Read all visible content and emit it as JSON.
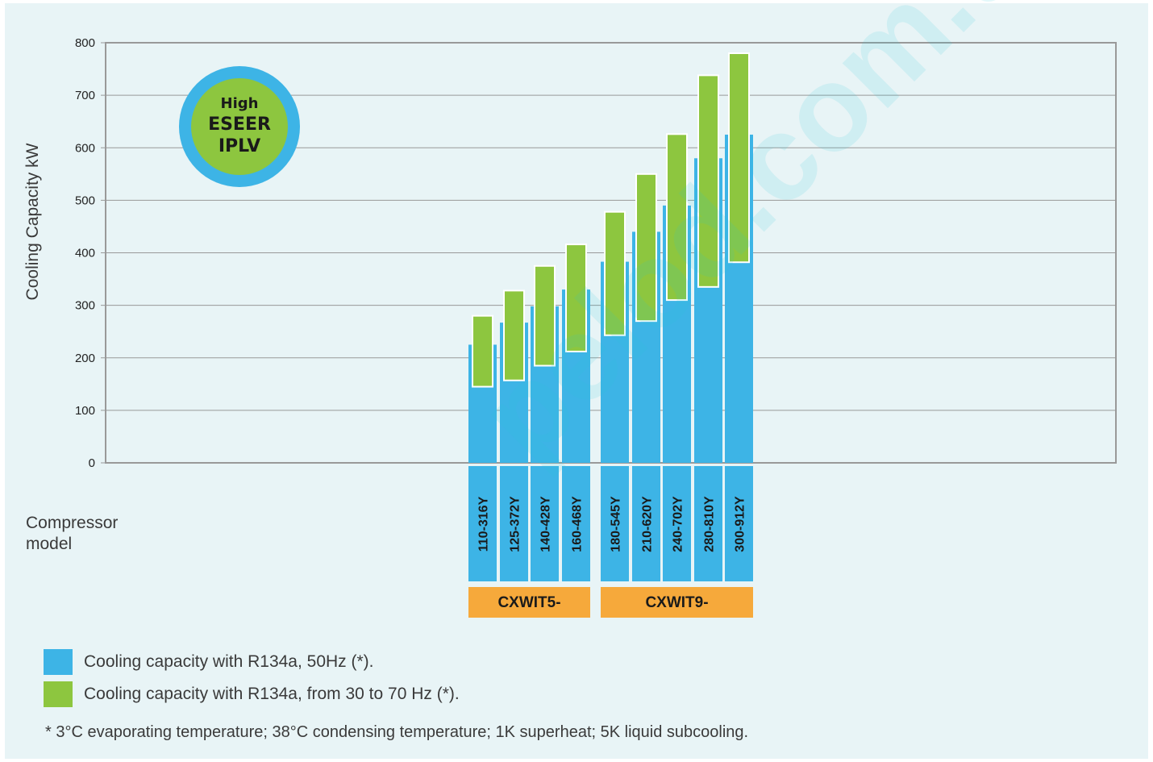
{
  "chart_data": {
    "type": "bar",
    "title": "",
    "ylabel": "Cooling Capacity kW",
    "xlabel": "Compressor model",
    "ylim": [
      0,
      800
    ],
    "yticks": [
      0,
      100,
      200,
      300,
      400,
      500,
      600,
      700,
      800
    ],
    "grid": true,
    "categories": [
      "110-316Y",
      "125-372Y",
      "140-428Y",
      "160-468Y",
      "180-545Y",
      "210-620Y",
      "240-702Y",
      "280-810Y",
      "300-912Y"
    ],
    "groups": [
      {
        "label": "CXWIT5-",
        "categories": [
          "110-316Y",
          "125-372Y",
          "140-428Y",
          "160-468Y"
        ]
      },
      {
        "label": "CXWIT9-",
        "categories": [
          "180-545Y",
          "210-620Y",
          "240-702Y",
          "280-810Y",
          "300-912Y"
        ]
      }
    ],
    "series": [
      {
        "name": "Cooling capacity with R134a, 50Hz (*).",
        "color": "#3db4e6",
        "values": [
          225,
          267,
          298,
          330,
          383,
          440,
          490,
          580,
          625
        ]
      },
      {
        "name": "Cooling capacity with R134a, from 30 to 70 Hz (*).",
        "color": "#8dc63f",
        "ranges": [
          [
            145,
            280
          ],
          [
            157,
            328
          ],
          [
            185,
            375
          ],
          [
            212,
            416
          ],
          [
            243,
            478
          ],
          [
            270,
            550
          ],
          [
            310,
            626
          ],
          [
            335,
            738
          ],
          [
            382,
            780
          ]
        ]
      }
    ],
    "legend_position": "bottom-left"
  },
  "badge": {
    "line1": "High",
    "line2": "ESEER",
    "line3": "IPLV"
  },
  "compressor_label": {
    "line1": "Compressor",
    "line2": "model"
  },
  "footnote": "*  3°C evaporating temperature; 38°C condensing temperature; 1K superheat; 5K liquid subcooling.",
  "watermark": "pelod.com.ua",
  "colors": {
    "blue": "#3db4e6",
    "green": "#8dc63f",
    "orange": "#f6a93b",
    "grid": "#999999",
    "panel": "#e8f4f6"
  }
}
